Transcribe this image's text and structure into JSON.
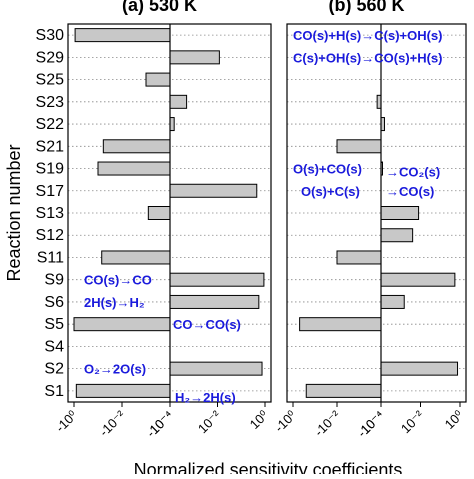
{
  "chart_data": {
    "type": "bar",
    "orientation": "horizontal",
    "ylabel": "Reaction number",
    "xlabel": "Normalized sensitivity coefficients",
    "categories": [
      "S30",
      "S29",
      "S25",
      "S23",
      "S22",
      "S21",
      "S19",
      "S17",
      "S13",
      "S12",
      "S11",
      "S9",
      "S6",
      "S5",
      "S4",
      "S2",
      "S1"
    ],
    "x_ticks": [
      "-10⁰",
      "-10⁻²",
      "-10⁻⁴",
      "10⁻⁴",
      "10⁻²",
      "10⁰"
    ],
    "x_tick_values": [
      -1,
      -0.01,
      -0.0001,
      0.0001,
      0.01,
      1
    ],
    "xscale": "symmetric-log",
    "grid": "horizontal dotted",
    "bar_color": "#c8c8c8",
    "annotation_color": "#1a1adc",
    "panels": [
      {
        "title": "(a) 530 K",
        "values": [
          -0.9,
          0.012,
          -0.001,
          0.0005,
          0.00015,
          -0.06,
          -0.1,
          0.45,
          -0.0008,
          0,
          -0.07,
          0.9,
          0.55,
          -1.0,
          0,
          0.75,
          -0.8
        ],
        "annotations": [
          {
            "text": "CO(s)→CO",
            "category": "S9"
          },
          {
            "text": "2H(s)→H₂",
            "category": "S6"
          },
          {
            "text": "CO→CO(s)",
            "category": "S5"
          },
          {
            "text": "O₂→2O(s)",
            "category": "S2"
          },
          {
            "text": "H₂→2H(s)",
            "category": "S1"
          }
        ]
      },
      {
        "title": "(b) 560 K",
        "values": [
          0,
          0,
          0,
          -0.00015,
          0.00015,
          -0.01,
          -0.0001,
          0,
          0.008,
          0.004,
          -0.01,
          0.55,
          0.0015,
          -0.5,
          0,
          0.75,
          -0.25
        ],
        "annotations": [
          {
            "text": "CO(s)+H(s)→C(s)+OH(s)",
            "category": "S30"
          },
          {
            "text": "C(s)+OH(s)→CO(s)+H(s)",
            "category": "S29"
          },
          {
            "text": "O(s)+CO(s)",
            "category": "S19"
          },
          {
            "text": "→CO₂(s)",
            "category": "S19"
          },
          {
            "text": "O(s)+C(s)",
            "category": "S17"
          },
          {
            "text": "→CO(s)",
            "category": "S17"
          }
        ]
      }
    ]
  }
}
